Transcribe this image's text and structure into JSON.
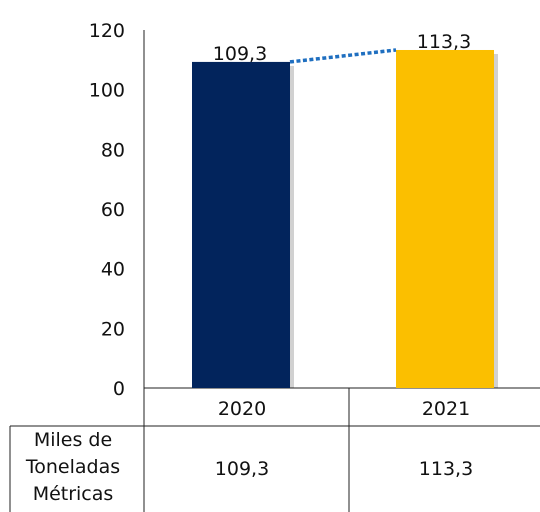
{
  "chart_data": {
    "type": "bar",
    "categories": [
      "2020",
      "2021"
    ],
    "values": [
      109.3,
      113.3
    ],
    "data_labels": [
      "109,3",
      "113,3"
    ],
    "colors": [
      "#02245c",
      "#fbbf00"
    ],
    "connector_color": "#1f6fc0",
    "ylim": [
      0,
      120
    ],
    "yticks": [
      "0",
      "20",
      "40",
      "60",
      "80",
      "100",
      "120"
    ],
    "grid": false,
    "title": "",
    "xlabel": "",
    "ylabel": "",
    "data_table": {
      "row_label_lines": [
        "Miles de",
        "Toneladas",
        "Métricas"
      ],
      "values": [
        "109,3",
        "113,3"
      ]
    }
  }
}
